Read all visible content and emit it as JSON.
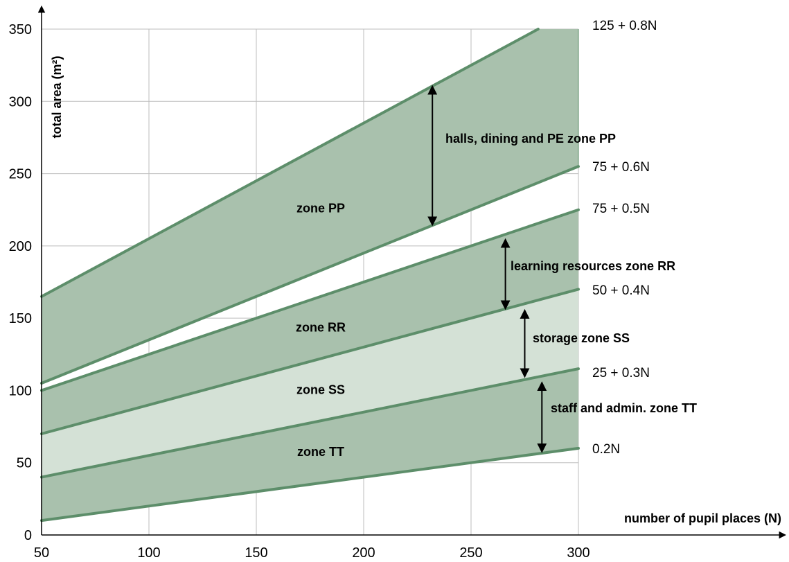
{
  "chart_data": {
    "type": "area",
    "xlabel": "number of pupil places (N)",
    "ylabel": "total area (m²)",
    "xlim": [
      50,
      300
    ],
    "ylim": [
      0,
      350
    ],
    "x_ticks": [
      "50",
      "100",
      "150",
      "200",
      "250",
      "300"
    ],
    "y_ticks": [
      "0",
      "50",
      "100",
      "150",
      "200",
      "250",
      "300",
      "350"
    ],
    "x_tick_values": [
      50,
      100,
      150,
      200,
      250,
      300
    ],
    "y_tick_values": [
      0,
      50,
      100,
      150,
      200,
      250,
      300,
      350
    ],
    "grid": true,
    "lines": [
      {
        "label": "125 + 0.8N",
        "intercept": 125,
        "slope": 0.8
      },
      {
        "label": "75 + 0.6N",
        "intercept": 75,
        "slope": 0.6
      },
      {
        "label": "75 + 0.5N",
        "intercept": 75,
        "slope": 0.5
      },
      {
        "label": "50 + 0.4N",
        "intercept": 50,
        "slope": 0.4
      },
      {
        "label": "25 + 0.3N",
        "intercept": 25,
        "slope": 0.3
      },
      {
        "label": "0.2N",
        "intercept": 0,
        "slope": 0.2
      }
    ],
    "zones": [
      {
        "name": "zone PP",
        "upper": "125 + 0.8N",
        "lower": "75 + 0.6N",
        "fill": "dark",
        "annotation": "halls, dining and PE zone PP",
        "label_x": 180,
        "arrow_x": 232,
        "arrow_y": [
          310,
          215
        ]
      },
      {
        "name": "zone RR",
        "upper": "75 + 0.5N",
        "lower": "50 + 0.4N",
        "fill": "dark",
        "annotation": "learning resources zone RR",
        "label_x": 180,
        "arrow_x": 266,
        "arrow_y": [
          204,
          157
        ]
      },
      {
        "name": "zone SS",
        "upper": "50 + 0.4N",
        "lower": "25 + 0.3N",
        "fill": "light",
        "annotation": "storage zone SS",
        "label_x": 180,
        "arrow_x": 275,
        "arrow_y": [
          155,
          110
        ]
      },
      {
        "name": "zone TT",
        "upper": "25 + 0.3N",
        "lower": "0.2N",
        "fill": "dark",
        "annotation": "staff and admin. zone TT",
        "label_x": 180,
        "arrow_x": 283,
        "arrow_y": [
          105,
          58
        ]
      }
    ],
    "colors": {
      "dark_fill": "#a9c1ad",
      "light_fill": "#d4e1d6",
      "line": "#5d8e6a",
      "grid": "#bdbdbd",
      "axis": "#000000"
    }
  }
}
